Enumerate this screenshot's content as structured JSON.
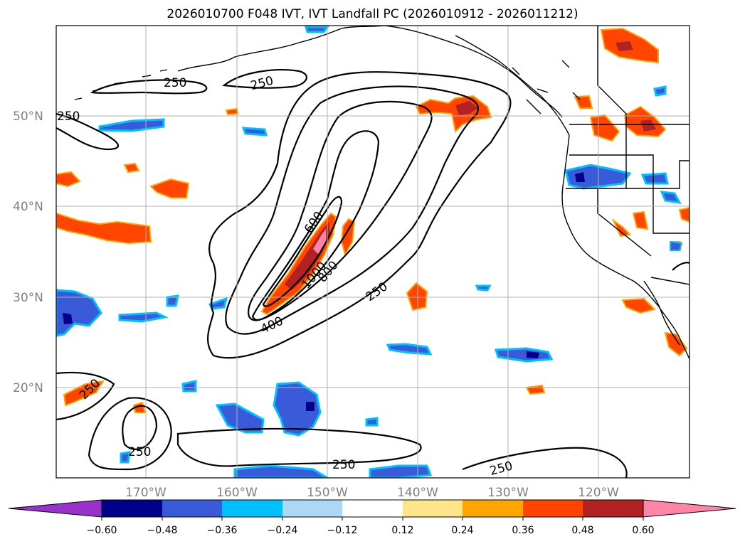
{
  "title": "2026010700 F048 IVT, IVT Landfall PC (2026010912 - 2026011212)",
  "lat_labels": [
    "50°N",
    "40°N",
    "30°N",
    "20°N"
  ],
  "lon_labels": [
    "170°W",
    "160°W",
    "150°W",
    "140°W",
    "130°W",
    "120°W"
  ],
  "contour_labels": [
    "250",
    "250",
    "250",
    "250",
    "250",
    "250",
    "250",
    "250",
    "600",
    "400",
    "800",
    "1000"
  ],
  "colorbar": {
    "ticks": [
      "−0.60",
      "−0.48",
      "−0.36",
      "−0.24",
      "−0.12",
      "0.12",
      "0.24",
      "0.36",
      "0.48",
      "0.60"
    ],
    "colors": [
      "#9932cc",
      "#00008b",
      "#3a5bd9",
      "#00bfff",
      "#add8f5",
      "#ffffff",
      "#fde68a",
      "#ffa500",
      "#ff4500",
      "#b22222",
      "#ff85a8"
    ]
  },
  "colors": {
    "neg_strong": "#00008b",
    "neg_mid": "#3a5bd9",
    "neg_light": "#00bfff",
    "pos_light": "#fde68a",
    "pos_mid": "#ffa500",
    "pos_strong": "#ff4500",
    "pos_dark": "#b22222",
    "pos_max": "#ff85a8"
  }
}
